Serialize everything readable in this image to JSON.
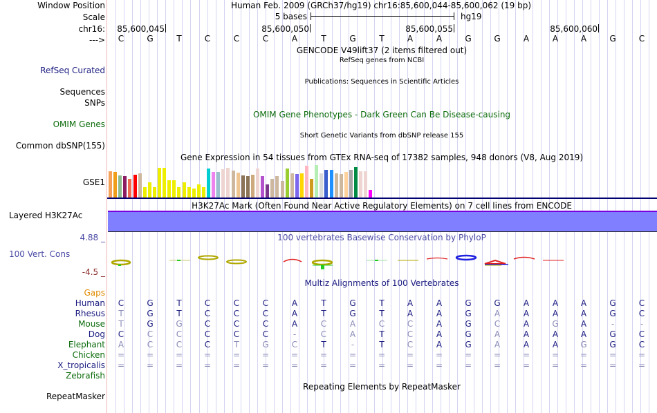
{
  "header": {
    "window_position_label": "Window Position",
    "scale_label": "Scale",
    "chrom_label": "chr16:",
    "strand_label": "--->",
    "title": "Human Feb. 2009 (GRCh37/hg19)   chr16:85,600,044-85,600,062 (19 bp)",
    "scale_text": "5 bases",
    "assembly": "hg19",
    "positions": [
      "85,600,045",
      "85,600,050",
      "85,600,055",
      "85,600,060"
    ],
    "sequence": [
      "C",
      "G",
      "T",
      "C",
      "C",
      "C",
      "A",
      "T",
      "G",
      "T",
      "A",
      "A",
      "G",
      "G",
      "A",
      "A",
      "A",
      "G",
      "C"
    ]
  },
  "tracks": {
    "gencode": {
      "title": "GENCODE V49lift37 (2 items filtered out)"
    },
    "refseq": {
      "label": "RefSeq Curated",
      "title": "RefSeq genes from NCBI"
    },
    "publications": {
      "label1": "Sequences",
      "label2": "SNPs",
      "title": "Publications: Sequences in Scientific Articles"
    },
    "omim": {
      "label": "OMIM Genes",
      "title": "OMIM Gene Phenotypes - Dark Green Can Be Disease-causing"
    },
    "dbsnp": {
      "label": "Common dbSNP(155)",
      "title": "Short Genetic Variants from dbSNP release 155"
    },
    "gtex": {
      "label": "GSE1",
      "title": "Gene Expression in 54 tissues from GTEx RNA-seq of 17382 samples, 948 donors (V8, Aug 2019)",
      "bars": [
        {
          "color": "#f5a15a",
          "value": 0.88
        },
        {
          "color": "#f09e1a",
          "value": 0.84
        },
        {
          "color": "#8fbc8f",
          "value": 0.74
        },
        {
          "color": "#8b1c62",
          "value": 0.72
        },
        {
          "color": "#ee6a50",
          "value": 0.64
        },
        {
          "color": "#ff0000",
          "value": 0.77
        },
        {
          "color": "#cdb79e",
          "value": 0.8
        },
        {
          "color": "#eeee00",
          "value": 0.38
        },
        {
          "color": "#eeee00",
          "value": 0.52
        },
        {
          "color": "#eeee00",
          "value": 0.38
        },
        {
          "color": "#eeee00",
          "value": 0.98
        },
        {
          "color": "#eeee00",
          "value": 0.98
        },
        {
          "color": "#eeee00",
          "value": 0.58
        },
        {
          "color": "#eeee00",
          "value": 0.58
        },
        {
          "color": "#eeee00",
          "value": 0.36
        },
        {
          "color": "#eeee00",
          "value": 0.52
        },
        {
          "color": "#eeee00",
          "value": 0.38
        },
        {
          "color": "#eeee00",
          "value": 0.32
        },
        {
          "color": "#eeee00",
          "value": 0.46
        },
        {
          "color": "#eeee00",
          "value": 0.38
        },
        {
          "color": "#00ced1",
          "value": 0.96
        },
        {
          "color": "#ee82ee",
          "value": 0.85
        },
        {
          "color": "#9ac0cd",
          "value": 0.85
        },
        {
          "color": "#eed5d2",
          "value": 0.94
        },
        {
          "color": "#eed5d2",
          "value": 0.98
        },
        {
          "color": "#cdb79e",
          "value": 0.9
        },
        {
          "color": "#eec591",
          "value": 0.82
        },
        {
          "color": "#8b7355",
          "value": 0.74
        },
        {
          "color": "#8b7355",
          "value": 0.72
        },
        {
          "color": "#cdaa7d",
          "value": 0.76
        },
        {
          "color": "#eed5d2",
          "value": 0.96
        },
        {
          "color": "#b452cd",
          "value": 0.72
        },
        {
          "color": "#7a378b",
          "value": 0.46
        },
        {
          "color": "#cdb79e",
          "value": 0.62
        },
        {
          "color": "#cdb79e",
          "value": 0.72
        },
        {
          "color": "#cdb79e",
          "value": 0.56
        },
        {
          "color": "#9acd32",
          "value": 0.95
        },
        {
          "color": "#cdb79e",
          "value": 0.8
        },
        {
          "color": "#7b68ee",
          "value": 0.78
        },
        {
          "color": "#ffd700",
          "value": 0.8
        },
        {
          "color": "#ffb6c1",
          "value": 1.04
        },
        {
          "color": "#cd9b1d",
          "value": 0.64
        },
        {
          "color": "#b4eeb4",
          "value": 1.06
        },
        {
          "color": "#d9d9d9",
          "value": 0.8
        },
        {
          "color": "#3a5fcd",
          "value": 0.92
        },
        {
          "color": "#1e90ff",
          "value": 0.92
        },
        {
          "color": "#cdb79e",
          "value": 0.8
        },
        {
          "color": "#cdb79e",
          "value": 0.78
        },
        {
          "color": "#ffd39b",
          "value": 0.84
        },
        {
          "color": "#a6a6a6",
          "value": 0.92
        },
        {
          "color": "#008b45",
          "value": 1.0
        },
        {
          "color": "#eed5d2",
          "value": 0.86
        },
        {
          "color": "#eed5d2",
          "value": 0.88
        },
        {
          "color": "#ff00ff",
          "value": 0.28
        }
      ]
    },
    "h3k27ac": {
      "label": "Layered H3K27Ac",
      "title": "H3K27Ac Mark (Often Found Near Active Regulatory Elements) on 7 cell lines from ENCODE",
      "color": "#7f7fff"
    },
    "phylop": {
      "label": "100 Vert. Cons",
      "ymax": "4.88 _",
      "ymin": "-4.5 _",
      "title": "100 vertebrates Basewise Conservation by PhyloP"
    },
    "multiz": {
      "title": "Multiz Alignments of 100 Vertebrates",
      "gaps_label": "Gaps",
      "species": [
        {
          "name": "Human",
          "color": "navy",
          "bases": [
            "C",
            "G",
            "T",
            "C",
            "C",
            "C",
            "A",
            "T",
            "G",
            "T",
            "A",
            "A",
            "G",
            "G",
            "A",
            "A",
            "A",
            "G",
            "C"
          ],
          "match": [
            1,
            1,
            1,
            1,
            1,
            1,
            1,
            1,
            1,
            1,
            1,
            1,
            1,
            1,
            1,
            1,
            1,
            1,
            1
          ]
        },
        {
          "name": "Rhesus",
          "color": "navy",
          "bases": [
            "T",
            "G",
            "T",
            "C",
            "C",
            "C",
            "A",
            "T",
            "G",
            "T",
            "A",
            "A",
            "G",
            "A",
            "A",
            "A",
            "A",
            "G",
            "C"
          ],
          "match": [
            0,
            1,
            1,
            1,
            1,
            1,
            1,
            1,
            1,
            1,
            1,
            1,
            1,
            0,
            1,
            1,
            1,
            1,
            1
          ]
        },
        {
          "name": "Mouse",
          "color": "green",
          "bases": [
            "T",
            "G",
            "G",
            "C",
            "C",
            "C",
            "A",
            "C",
            "A",
            "C",
            "C",
            "A",
            "G",
            "C",
            "A",
            "G",
            "A",
            "-",
            "-"
          ],
          "match": [
            0,
            1,
            0,
            1,
            1,
            1,
            1,
            0,
            0,
            0,
            0,
            1,
            1,
            0,
            1,
            0,
            1,
            0,
            0
          ]
        },
        {
          "name": "Dog",
          "color": "navy",
          "bases": [
            "C",
            "C",
            "C",
            "C",
            "C",
            "C",
            "-",
            "C",
            "A",
            "T",
            "C",
            "A",
            "G",
            "A",
            "A",
            "A",
            "A",
            "G",
            "C"
          ],
          "match": [
            1,
            0,
            0,
            1,
            1,
            1,
            0,
            0,
            0,
            1,
            0,
            1,
            1,
            0,
            1,
            1,
            1,
            1,
            1
          ]
        },
        {
          "name": "Elephant",
          "color": "green",
          "bases": [
            "A",
            "C",
            "C",
            "C",
            "T",
            "G",
            "C",
            "T",
            "-",
            "T",
            "C",
            "A",
            "G",
            "A",
            "A",
            "A",
            "G",
            "G",
            "C"
          ],
          "match": [
            0,
            0,
            0,
            1,
            0,
            0,
            0,
            1,
            0,
            1,
            0,
            1,
            1,
            0,
            1,
            1,
            0,
            1,
            1
          ]
        },
        {
          "name": "Chicken",
          "color": "green",
          "bases": [
            "=",
            "=",
            "=",
            "=",
            "=",
            "=",
            "=",
            "=",
            "=",
            "=",
            "=",
            "=",
            "=",
            "=",
            "=",
            "=",
            "=",
            "=",
            "="
          ],
          "match": [
            0,
            0,
            0,
            0,
            0,
            0,
            0,
            0,
            0,
            0,
            0,
            0,
            0,
            0,
            0,
            0,
            0,
            0,
            0
          ]
        },
        {
          "name": "X_tropicalis",
          "color": "navy",
          "bases": [
            "=",
            "=",
            "=",
            "=",
            "=",
            "=",
            "=",
            "=",
            "=",
            "=",
            "=",
            "=",
            "=",
            "=",
            "=",
            "=",
            "=",
            "=",
            "="
          ],
          "match": [
            0,
            0,
            0,
            0,
            0,
            0,
            0,
            0,
            0,
            0,
            0,
            0,
            0,
            0,
            0,
            0,
            0,
            0,
            0
          ]
        },
        {
          "name": "Zebrafish",
          "color": "green",
          "bases": [],
          "match": []
        }
      ]
    },
    "repeatmasker": {
      "label": "RepeatMasker",
      "title": "Repeating Elements by RepeatMasker"
    }
  }
}
